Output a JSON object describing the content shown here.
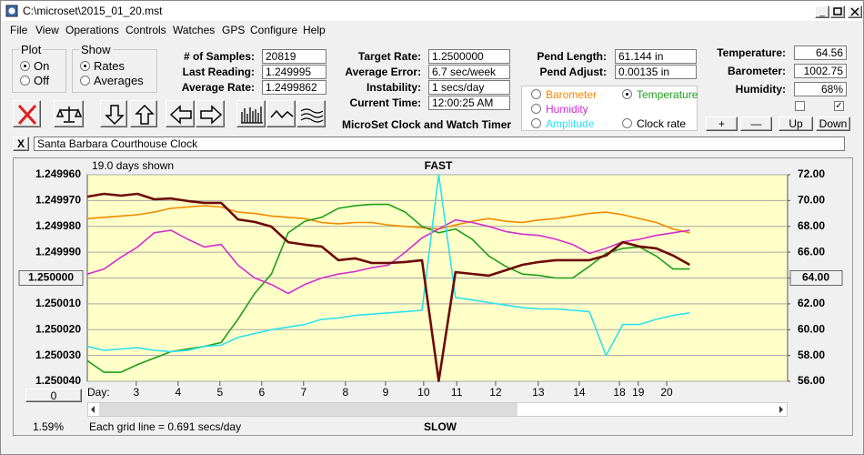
{
  "window": {
    "title": "C:\\microset\\2015_01_20.mst"
  },
  "menu": [
    "File",
    "View",
    "Operations",
    "Controls",
    "Watches",
    "GPS",
    "Configure",
    "Help"
  ],
  "plot_group": {
    "title": "Plot",
    "options": [
      "On",
      "Off"
    ]
  },
  "show_group": {
    "title": "Show",
    "options": [
      "Rates",
      "Averages"
    ]
  },
  "fields": [
    {
      "label": "# of Samples:",
      "value": "20819"
    },
    {
      "label": "Last Reading:",
      "value": "1.249995"
    },
    {
      "label": "Average Rate:",
      "value": "1.2499862"
    },
    {
      "label": "Target Rate:",
      "value": "1.2500000"
    },
    {
      "label": "Average Error:",
      "value": "6.7 sec/week"
    },
    {
      "label": "Instability:",
      "value": "1 secs/day"
    },
    {
      "label": "Current Time:",
      "value": "12:00:25 AM"
    },
    {
      "label": "Pend Length:",
      "value": "61.144 in"
    },
    {
      "label": "Pend Adjust:",
      "value": "0.00135 in"
    },
    {
      "label": "Temperature:",
      "value": "64.56"
    },
    {
      "label": "Barometer:",
      "value": "1002.75"
    },
    {
      "label": "Humidity:",
      "value": "68%"
    }
  ],
  "app_name": "MicroSet Clock and Watch Timer",
  "buttons": [
    "+",
    "—",
    "Up",
    "Down"
  ],
  "clock_close": "X",
  "clock_name": "Santa Barbara Courthouse Clock",
  "chart_data": {
    "type": "line",
    "days_shown": "19.0 days shown",
    "top_label": "FAST",
    "bottom_label": "SLOW",
    "x_label": "Day:",
    "zoom": "1.59%",
    "grid_note": "Each grid line = 0.691 secs/day",
    "offset_button": "0",
    "grid": true,
    "x": [
      0,
      0.4,
      0.8,
      1.2,
      1.6,
      2,
      2.4,
      2.8,
      3.2,
      3.6,
      4,
      4.4,
      4.8,
      5.2,
      5.6,
      6,
      6.4,
      6.8,
      7.2,
      7.6,
      8,
      8.4,
      8.8,
      9.2,
      9.6,
      10,
      10.4,
      10.8,
      11.2,
      11.6,
      12,
      12.4,
      12.8,
      13.2,
      13.6,
      14,
      14.4
    ],
    "xlim": [
      0,
      16.74
    ],
    "xticks": [
      {
        "value": 1.17,
        "label": "3"
      },
      {
        "value": 2.17,
        "label": "4"
      },
      {
        "value": 3.17,
        "label": "5"
      },
      {
        "value": 4.17,
        "label": "6"
      },
      {
        "value": 5.17,
        "label": "7"
      },
      {
        "value": 6.17,
        "label": "8"
      },
      {
        "value": 7.13,
        "label": "9"
      },
      {
        "value": 8.04,
        "label": "10"
      },
      {
        "value": 8.83,
        "label": "11"
      },
      {
        "value": 9.76,
        "label": "12"
      },
      {
        "value": 10.78,
        "label": "13"
      },
      {
        "value": 11.76,
        "label": "14"
      },
      {
        "value": 12.72,
        "label": "18"
      },
      {
        "value": 13.17,
        "label": "19"
      },
      {
        "value": 13.85,
        "label": "20"
      }
    ],
    "ylim": [
      1.25004,
      1.24996
    ],
    "yticks": [
      {
        "value": 1.24996,
        "label": "1.249960"
      },
      {
        "value": 1.24997,
        "label": "1.249970"
      },
      {
        "value": 1.24998,
        "label": "1.249980"
      },
      {
        "value": 1.24999,
        "label": "1.249990"
      },
      {
        "value": 1.25,
        "label": "1.250000"
      },
      {
        "value": 1.25001,
        "label": "1.250010"
      },
      {
        "value": 1.25002,
        "label": "1.250020"
      },
      {
        "value": 1.25003,
        "label": "1.250030"
      },
      {
        "value": 1.25004,
        "label": "1.250040"
      }
    ],
    "y2lim": [
      56,
      72
    ],
    "y2ticks": [
      {
        "value": 72,
        "label": "72.00"
      },
      {
        "value": 70,
        "label": "70.00"
      },
      {
        "value": 68,
        "label": "68.00"
      },
      {
        "value": 66,
        "label": "66.00"
      },
      {
        "value": 64,
        "label": "64.00"
      },
      {
        "value": 62,
        "label": "62.00"
      },
      {
        "value": 60,
        "label": "60.00"
      },
      {
        "value": 58,
        "label": "58.00"
      },
      {
        "value": 56,
        "label": "56.00"
      }
    ],
    "series": [
      {
        "name": "Barometer",
        "color": "#f08a00",
        "axis": "y2",
        "values": [
          68.6,
          68.7,
          68.8,
          68.9,
          69.1,
          69.4,
          69.5,
          69.6,
          69.5,
          69.1,
          69.0,
          68.8,
          68.7,
          68.6,
          68.3,
          68.2,
          68.3,
          68.3,
          68.1,
          68.0,
          67.9,
          67.8,
          68.1,
          68.4,
          68.6,
          68.4,
          68.3,
          68.5,
          68.6,
          68.8,
          69.0,
          69.1,
          68.9,
          68.6,
          68.3,
          67.8,
          67.5
        ]
      },
      {
        "name": "Temperature",
        "color": "#1e9e1e",
        "axis": "y2",
        "values": [
          57.6,
          56.7,
          56.7,
          57.3,
          57.8,
          58.3,
          58.5,
          58.7,
          59.0,
          60.8,
          62.8,
          64.3,
          67.5,
          68.4,
          68.7,
          69.4,
          69.6,
          69.7,
          69.7,
          69.1,
          68.0,
          67.5,
          67.8,
          67.0,
          65.7,
          64.9,
          64.3,
          64.2,
          64.0,
          64.0,
          64.9,
          65.9,
          66.3,
          66.4,
          65.7,
          64.7,
          64.7
        ]
      },
      {
        "name": "Humidity",
        "color": "#d22ed2",
        "axis": "y2",
        "values": [
          64.3,
          64.7,
          65.6,
          66.4,
          67.5,
          67.7,
          67.0,
          66.4,
          66.6,
          65.0,
          64.0,
          63.5,
          62.8,
          63.5,
          64.0,
          64.3,
          64.5,
          64.8,
          65.0,
          66.0,
          67.1,
          67.8,
          68.5,
          68.3,
          68.0,
          67.6,
          67.4,
          67.3,
          67.0,
          66.6,
          65.9,
          66.3,
          66.8,
          67.0,
          67.3,
          67.5,
          67.7
        ]
      },
      {
        "name": "Amplitude",
        "color": "#2ee0f0",
        "axis": "y2",
        "values": [
          58.7,
          58.4,
          58.5,
          58.6,
          58.4,
          58.3,
          58.4,
          58.7,
          58.8,
          59.4,
          59.7,
          60.0,
          60.2,
          60.4,
          60.8,
          60.9,
          61.1,
          61.2,
          61.3,
          61.4,
          61.5,
          72.0,
          62.5,
          62.3,
          62.1,
          61.9,
          61.7,
          61.6,
          61.6,
          61.5,
          61.4,
          58.0,
          60.4,
          60.4,
          60.8,
          61.1,
          61.3
        ]
      },
      {
        "name": "Clock rate",
        "color": "#6e0a0a",
        "values": [
          1.2499685,
          1.2499674,
          1.2499681,
          1.2499674,
          1.2499695,
          1.2499692,
          1.2499702,
          1.2499709,
          1.2499709,
          1.2499773,
          1.2499783,
          1.2499801,
          1.2499861,
          1.2499871,
          1.2499878,
          1.2499931,
          1.2499924,
          1.2499942,
          1.2499942,
          1.2499938,
          1.2499931,
          1.2500399,
          1.2499977,
          1.2499984,
          1.2499991,
          1.249997,
          1.2499949,
          1.2499938,
          1.2499931,
          1.2499931,
          1.2499931,
          1.2499913,
          1.2499861,
          1.2499878,
          1.2499885,
          1.2499913,
          1.2499949
        ]
      }
    ]
  }
}
